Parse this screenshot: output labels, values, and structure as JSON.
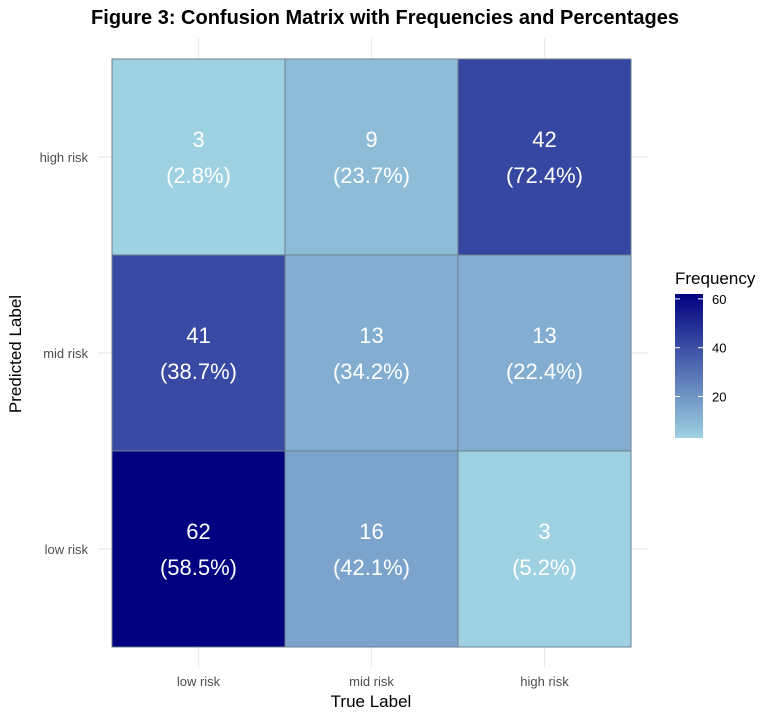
{
  "chart_data": {
    "type": "heatmap",
    "title": "Figure 3: Confusion Matrix with Frequencies and Percentages",
    "xlabel": "True Label",
    "ylabel": "Predicted Label",
    "x_categories": [
      "low risk",
      "mid risk",
      "high risk"
    ],
    "y_categories": [
      "high risk",
      "mid risk",
      "low risk"
    ],
    "cells": [
      {
        "true": "low risk",
        "predicted": "high risk",
        "count": 3,
        "percent": "(2.8%)"
      },
      {
        "true": "mid risk",
        "predicted": "high risk",
        "count": 9,
        "percent": "(23.7%)"
      },
      {
        "true": "high risk",
        "predicted": "high risk",
        "count": 42,
        "percent": "(72.4%)"
      },
      {
        "true": "low risk",
        "predicted": "mid risk",
        "count": 41,
        "percent": "(38.7%)"
      },
      {
        "true": "mid risk",
        "predicted": "mid risk",
        "count": 13,
        "percent": "(34.2%)"
      },
      {
        "true": "high risk",
        "predicted": "mid risk",
        "count": 13,
        "percent": "(22.4%)"
      },
      {
        "true": "low risk",
        "predicted": "low risk",
        "count": 62,
        "percent": "(58.5%)"
      },
      {
        "true": "mid risk",
        "predicted": "low risk",
        "count": 16,
        "percent": "(42.1%)"
      },
      {
        "true": "high risk",
        "predicted": "low risk",
        "count": 3,
        "percent": "(5.2%)"
      }
    ],
    "legend": {
      "title": "Frequency",
      "ticks": [
        20,
        40,
        60
      ],
      "range": [
        3,
        62
      ],
      "color_low": "#9ed1e1",
      "color_high": "#000080"
    },
    "grid": true
  }
}
